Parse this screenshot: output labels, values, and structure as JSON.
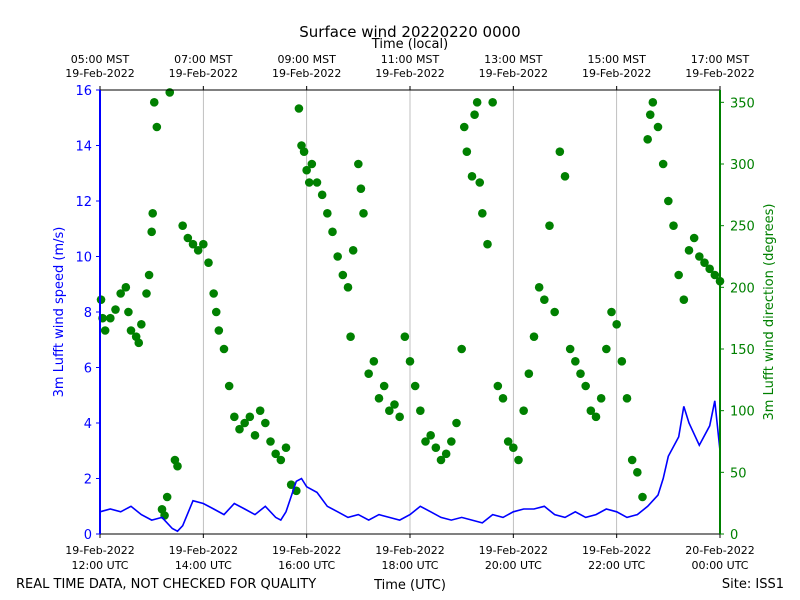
{
  "chart_data": {
    "type": "line+scatter",
    "title": "Surface wind 20220220 0000",
    "top_axis_label": "Time (local)",
    "xlabel": "Time (UTC)",
    "ylabel_left": "3m Lufft wind speed (m/s)",
    "ylabel_right": "3m Lufft wind direction (degrees)",
    "ylim_left": [
      0,
      16
    ],
    "ylim_right": [
      0,
      360
    ],
    "xlim_hours_utc": [
      12,
      24
    ],
    "grid": "vertical",
    "left_ticks": [
      0,
      2,
      4,
      6,
      8,
      10,
      12,
      14,
      16
    ],
    "right_ticks": [
      0,
      50,
      100,
      150,
      200,
      250,
      300,
      350
    ],
    "bottom_ticks": [
      {
        "hour": 12,
        "line1": "19-Feb-2022",
        "line2": "12:00 UTC"
      },
      {
        "hour": 14,
        "line1": "19-Feb-2022",
        "line2": "14:00 UTC"
      },
      {
        "hour": 16,
        "line1": "19-Feb-2022",
        "line2": "16:00 UTC"
      },
      {
        "hour": 18,
        "line1": "19-Feb-2022",
        "line2": "18:00 UTC"
      },
      {
        "hour": 20,
        "line1": "19-Feb-2022",
        "line2": "20:00 UTC"
      },
      {
        "hour": 22,
        "line1": "19-Feb-2022",
        "line2": "22:00 UTC"
      },
      {
        "hour": 24,
        "line1": "20-Feb-2022",
        "line2": "00:00 UTC"
      }
    ],
    "top_ticks": [
      {
        "hour": 12,
        "line1": "05:00 MST",
        "line2": "19-Feb-2022"
      },
      {
        "hour": 14,
        "line1": "07:00 MST",
        "line2": "19-Feb-2022"
      },
      {
        "hour": 16,
        "line1": "09:00 MST",
        "line2": "19-Feb-2022"
      },
      {
        "hour": 18,
        "line1": "11:00 MST",
        "line2": "19-Feb-2022"
      },
      {
        "hour": 20,
        "line1": "13:00 MST",
        "line2": "19-Feb-2022"
      },
      {
        "hour": 22,
        "line1": "15:00 MST",
        "line2": "19-Feb-2022"
      },
      {
        "hour": 24,
        "line1": "17:00 MST",
        "line2": "19-Feb-2022"
      }
    ],
    "colors": {
      "speed": "#0000ff",
      "direction": "#008000"
    },
    "series": [
      {
        "name": "3m Lufft wind speed (m/s)",
        "axis": "left",
        "style": "line",
        "points": [
          [
            12.0,
            0.8
          ],
          [
            12.2,
            0.9
          ],
          [
            12.4,
            0.8
          ],
          [
            12.6,
            1.0
          ],
          [
            12.8,
            0.7
          ],
          [
            13.0,
            0.5
          ],
          [
            13.2,
            0.6
          ],
          [
            13.4,
            0.2
          ],
          [
            13.5,
            0.1
          ],
          [
            13.6,
            0.3
          ],
          [
            13.8,
            1.2
          ],
          [
            14.0,
            1.1
          ],
          [
            14.2,
            0.9
          ],
          [
            14.4,
            0.7
          ],
          [
            14.6,
            1.1
          ],
          [
            14.8,
            0.9
          ],
          [
            15.0,
            0.7
          ],
          [
            15.2,
            1.0
          ],
          [
            15.4,
            0.6
          ],
          [
            15.5,
            0.5
          ],
          [
            15.6,
            0.8
          ],
          [
            15.8,
            1.9
          ],
          [
            15.9,
            2.0
          ],
          [
            16.0,
            1.7
          ],
          [
            16.2,
            1.5
          ],
          [
            16.4,
            1.0
          ],
          [
            16.6,
            0.8
          ],
          [
            16.8,
            0.6
          ],
          [
            17.0,
            0.7
          ],
          [
            17.2,
            0.5
          ],
          [
            17.4,
            0.7
          ],
          [
            17.6,
            0.6
          ],
          [
            17.8,
            0.5
          ],
          [
            18.0,
            0.7
          ],
          [
            18.2,
            1.0
          ],
          [
            18.4,
            0.8
          ],
          [
            18.6,
            0.6
          ],
          [
            18.8,
            0.5
          ],
          [
            19.0,
            0.6
          ],
          [
            19.2,
            0.5
          ],
          [
            19.4,
            0.4
          ],
          [
            19.6,
            0.7
          ],
          [
            19.8,
            0.6
          ],
          [
            20.0,
            0.8
          ],
          [
            20.2,
            0.9
          ],
          [
            20.4,
            0.9
          ],
          [
            20.6,
            1.0
          ],
          [
            20.8,
            0.7
          ],
          [
            21.0,
            0.6
          ],
          [
            21.2,
            0.8
          ],
          [
            21.4,
            0.6
          ],
          [
            21.6,
            0.7
          ],
          [
            21.8,
            0.9
          ],
          [
            22.0,
            0.8
          ],
          [
            22.2,
            0.6
          ],
          [
            22.4,
            0.7
          ],
          [
            22.6,
            1.0
          ],
          [
            22.8,
            1.4
          ],
          [
            22.9,
            2.0
          ],
          [
            23.0,
            2.8
          ],
          [
            23.2,
            3.5
          ],
          [
            23.3,
            4.6
          ],
          [
            23.4,
            4.0
          ],
          [
            23.6,
            3.2
          ],
          [
            23.8,
            3.9
          ],
          [
            23.9,
            4.8
          ],
          [
            24.0,
            3.0
          ]
        ]
      },
      {
        "name": "3m Lufft wind direction (degrees)",
        "axis": "right",
        "style": "markers",
        "points": [
          [
            12.02,
            190
          ],
          [
            12.05,
            175
          ],
          [
            12.1,
            165
          ],
          [
            12.2,
            175
          ],
          [
            12.3,
            182
          ],
          [
            12.4,
            195
          ],
          [
            12.5,
            200
          ],
          [
            12.55,
            180
          ],
          [
            12.6,
            165
          ],
          [
            12.7,
            160
          ],
          [
            12.75,
            155
          ],
          [
            12.8,
            170
          ],
          [
            12.9,
            195
          ],
          [
            12.95,
            210
          ],
          [
            13.0,
            245
          ],
          [
            13.02,
            260
          ],
          [
            13.05,
            350
          ],
          [
            13.1,
            330
          ],
          [
            13.2,
            20
          ],
          [
            13.25,
            15
          ],
          [
            13.3,
            30
          ],
          [
            13.35,
            358
          ],
          [
            13.45,
            60
          ],
          [
            13.5,
            55
          ],
          [
            13.6,
            250
          ],
          [
            13.7,
            240
          ],
          [
            13.8,
            235
          ],
          [
            13.9,
            230
          ],
          [
            14.0,
            235
          ],
          [
            14.1,
            220
          ],
          [
            14.2,
            195
          ],
          [
            14.25,
            180
          ],
          [
            14.3,
            165
          ],
          [
            14.4,
            150
          ],
          [
            14.5,
            120
          ],
          [
            14.6,
            95
          ],
          [
            14.7,
            85
          ],
          [
            14.8,
            90
          ],
          [
            14.9,
            95
          ],
          [
            15.0,
            80
          ],
          [
            15.1,
            100
          ],
          [
            15.2,
            90
          ],
          [
            15.3,
            75
          ],
          [
            15.4,
            65
          ],
          [
            15.5,
            60
          ],
          [
            15.6,
            70
          ],
          [
            15.7,
            40
          ],
          [
            15.8,
            35
          ],
          [
            15.85,
            345
          ],
          [
            15.9,
            315
          ],
          [
            15.95,
            310
          ],
          [
            16.0,
            295
          ],
          [
            16.05,
            285
          ],
          [
            16.1,
            300
          ],
          [
            16.2,
            285
          ],
          [
            16.3,
            275
          ],
          [
            16.4,
            260
          ],
          [
            16.5,
            245
          ],
          [
            16.6,
            225
          ],
          [
            16.7,
            210
          ],
          [
            16.8,
            200
          ],
          [
            16.85,
            160
          ],
          [
            16.9,
            230
          ],
          [
            17.0,
            300
          ],
          [
            17.05,
            280
          ],
          [
            17.1,
            260
          ],
          [
            17.2,
            130
          ],
          [
            17.3,
            140
          ],
          [
            17.4,
            110
          ],
          [
            17.5,
            120
          ],
          [
            17.6,
            100
          ],
          [
            17.7,
            105
          ],
          [
            17.8,
            95
          ],
          [
            17.9,
            160
          ],
          [
            18.0,
            140
          ],
          [
            18.1,
            120
          ],
          [
            18.2,
            100
          ],
          [
            18.3,
            75
          ],
          [
            18.4,
            80
          ],
          [
            18.5,
            70
          ],
          [
            18.6,
            60
          ],
          [
            18.7,
            65
          ],
          [
            18.8,
            75
          ],
          [
            18.9,
            90
          ],
          [
            19.0,
            150
          ],
          [
            19.05,
            330
          ],
          [
            19.1,
            310
          ],
          [
            19.2,
            290
          ],
          [
            19.25,
            340
          ],
          [
            19.3,
            350
          ],
          [
            19.35,
            285
          ],
          [
            19.4,
            260
          ],
          [
            19.5,
            235
          ],
          [
            19.6,
            350
          ],
          [
            19.7,
            120
          ],
          [
            19.8,
            110
          ],
          [
            19.9,
            75
          ],
          [
            20.0,
            70
          ],
          [
            20.1,
            60
          ],
          [
            20.2,
            100
          ],
          [
            20.3,
            130
          ],
          [
            20.4,
            160
          ],
          [
            20.5,
            200
          ],
          [
            20.6,
            190
          ],
          [
            20.7,
            250
          ],
          [
            20.8,
            180
          ],
          [
            20.9,
            310
          ],
          [
            21.0,
            290
          ],
          [
            21.1,
            150
          ],
          [
            21.2,
            140
          ],
          [
            21.3,
            130
          ],
          [
            21.4,
            120
          ],
          [
            21.5,
            100
          ],
          [
            21.6,
            95
          ],
          [
            21.7,
            110
          ],
          [
            21.8,
            150
          ],
          [
            21.9,
            180
          ],
          [
            22.0,
            170
          ],
          [
            22.1,
            140
          ],
          [
            22.2,
            110
          ],
          [
            22.3,
            60
          ],
          [
            22.4,
            50
          ],
          [
            22.5,
            30
          ],
          [
            22.6,
            320
          ],
          [
            22.65,
            340
          ],
          [
            22.7,
            350
          ],
          [
            22.8,
            330
          ],
          [
            22.9,
            300
          ],
          [
            23.0,
            270
          ],
          [
            23.1,
            250
          ],
          [
            23.2,
            210
          ],
          [
            23.3,
            190
          ],
          [
            23.4,
            230
          ],
          [
            23.5,
            240
          ],
          [
            23.6,
            225
          ],
          [
            23.7,
            220
          ],
          [
            23.8,
            215
          ],
          [
            23.9,
            210
          ],
          [
            24.0,
            205
          ]
        ]
      }
    ]
  },
  "footer": {
    "left_note": "REAL TIME DATA, NOT CHECKED FOR QUALITY",
    "site": "Site: ISS1"
  }
}
